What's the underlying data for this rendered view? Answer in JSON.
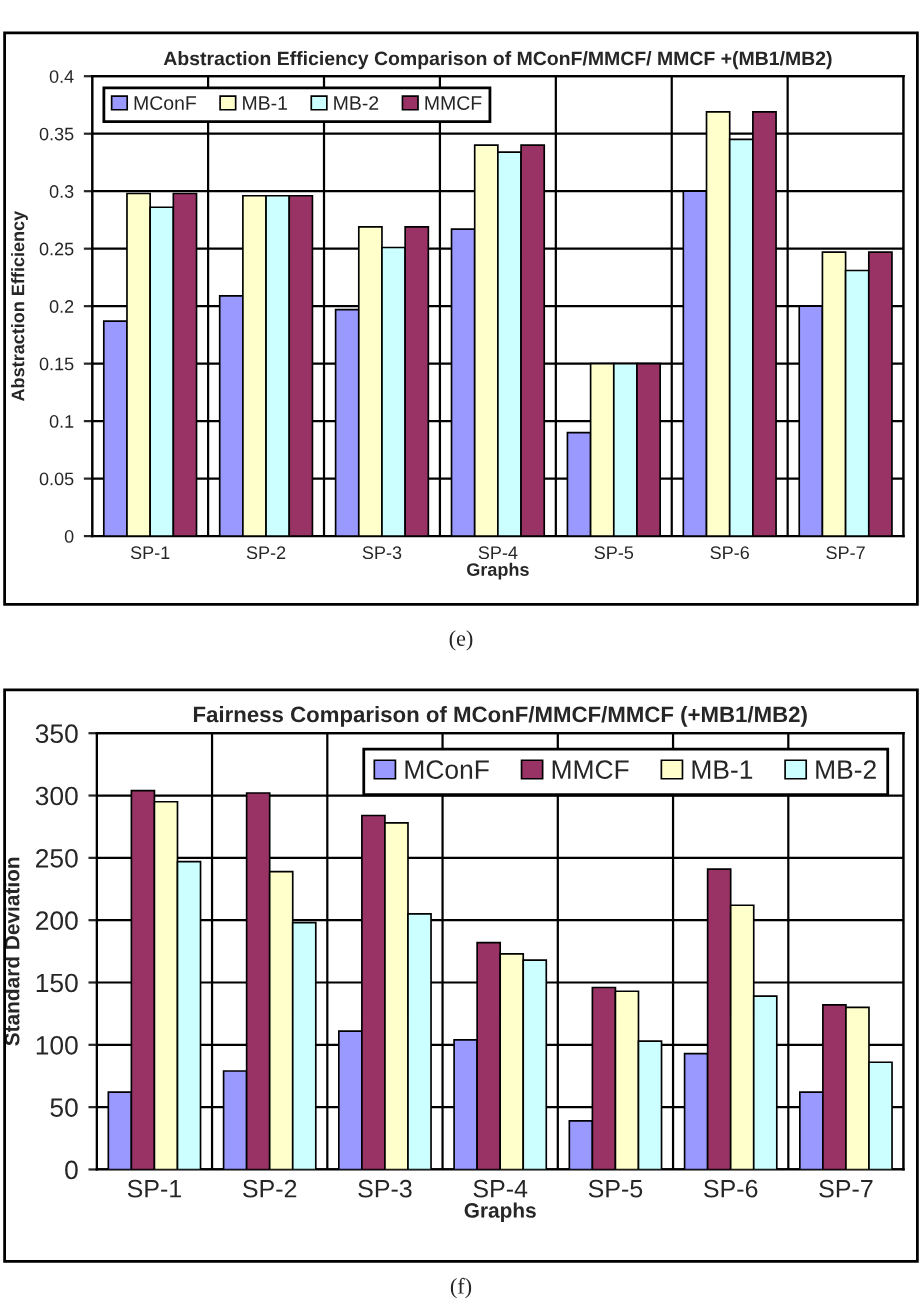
{
  "chart_data": [
    {
      "type": "bar",
      "title": "Abstraction Efficiency Comparison of MConF/MMCF/ MMCF +(MB1/MB2)",
      "xlabel": "Graphs",
      "ylabel": "Abstraction Efficiency",
      "categories": [
        "SP-1",
        "SP-2",
        "SP-3",
        "SP-4",
        "SP-5",
        "SP-6",
        "SP-7"
      ],
      "series": [
        {
          "name": "MConF",
          "color": "#9999ff",
          "values": [
            0.187,
            0.209,
            0.197,
            0.267,
            0.09,
            0.3,
            0.2
          ]
        },
        {
          "name": "MB-1",
          "color": "#ffffcc",
          "values": [
            0.298,
            0.296,
            0.269,
            0.34,
            0.15,
            0.369,
            0.247
          ]
        },
        {
          "name": "MB-2",
          "color": "#ccffff",
          "values": [
            0.286,
            0.296,
            0.251,
            0.334,
            0.15,
            0.345,
            0.231
          ]
        },
        {
          "name": "MMCF",
          "color": "#993366",
          "values": [
            0.298,
            0.296,
            0.269,
            0.34,
            0.15,
            0.369,
            0.247
          ]
        }
      ],
      "ylim": [
        0,
        0.4
      ],
      "yticks": [
        0,
        0.05,
        0.1,
        0.15,
        0.2,
        0.25,
        0.3,
        0.35,
        0.4
      ],
      "grid": true,
      "legend": "top left",
      "annotations": [
        "(e)"
      ]
    },
    {
      "type": "bar",
      "title": "Fairness Comparison of MConF/MMCF/MMCF (+MB1/MB2)",
      "xlabel": "Graphs",
      "ylabel": "Standard Deviation",
      "categories": [
        "SP-1",
        "SP-2",
        "SP-3",
        "SP-4",
        "SP-5",
        "SP-6",
        "SP-7"
      ],
      "series": [
        {
          "name": "MConF",
          "color": "#9999ff",
          "values": [
            62,
            79,
            111,
            104,
            39,
            93,
            62
          ]
        },
        {
          "name": "MMCF",
          "color": "#993366",
          "values": [
            304,
            302,
            284,
            182,
            146,
            241,
            132
          ]
        },
        {
          "name": "MB-1",
          "color": "#ffffcc",
          "values": [
            295,
            239,
            278,
            173,
            143,
            212,
            130
          ]
        },
        {
          "name": "MB-2",
          "color": "#ccffff",
          "values": [
            247,
            198,
            205,
            168,
            103,
            139,
            86
          ]
        }
      ],
      "ylim": [
        0,
        350
      ],
      "yticks": [
        0,
        50,
        100,
        150,
        200,
        250,
        300,
        350
      ],
      "grid": true,
      "legend": "top right",
      "annotations": [
        "(f)"
      ]
    }
  ]
}
